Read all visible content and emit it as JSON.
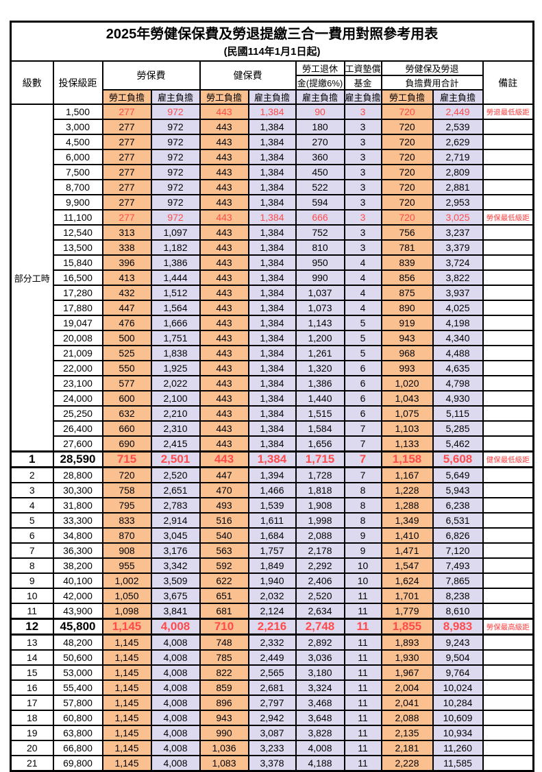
{
  "table": {
    "title": "2025年勞健保保費及勞退提繳三合一費用對照參考用表",
    "subtitle": "(民國114年1月1日起)",
    "header": {
      "level": "級數",
      "salary": "投保級距",
      "labor": "勞保費",
      "health": "健保費",
      "pension_line1": "勞工退休",
      "pension_line2": "金(提繳6%)",
      "wage_fund_line1": "工資墊償",
      "wage_fund_line2": "基金",
      "total_line1": "勞健保及勞退",
      "total_line2": "負擔費用合計",
      "remark": "備註",
      "employee": "勞工負擔",
      "employer": "雇主負擔"
    },
    "part_time_label": "部分工時",
    "part_time_rowspan": 23,
    "colors": {
      "employee_bg": "#FAC090",
      "employer_bg": "#DDDAF0",
      "highlight_text": "#FF4B4B",
      "remark_text": "#FF4040",
      "border": "#000000"
    },
    "rows": [
      {
        "level": "",
        "salary": "1,500",
        "cells": [
          "277",
          "972",
          "443",
          "1,384",
          "90",
          "3",
          "720",
          "2,449"
        ],
        "remark": "勞退最低級距",
        "highlight": true,
        "bold": false
      },
      {
        "level": "",
        "salary": "3,000",
        "cells": [
          "277",
          "972",
          "443",
          "1,384",
          "180",
          "3",
          "720",
          "2,539"
        ],
        "remark": "",
        "highlight": false,
        "bold": false
      },
      {
        "level": "",
        "salary": "4,500",
        "cells": [
          "277",
          "972",
          "443",
          "1,384",
          "270",
          "3",
          "720",
          "2,629"
        ],
        "remark": "",
        "highlight": false,
        "bold": false
      },
      {
        "level": "",
        "salary": "6,000",
        "cells": [
          "277",
          "972",
          "443",
          "1,384",
          "360",
          "3",
          "720",
          "2,719"
        ],
        "remark": "",
        "highlight": false,
        "bold": false
      },
      {
        "level": "",
        "salary": "7,500",
        "cells": [
          "277",
          "972",
          "443",
          "1,384",
          "450",
          "3",
          "720",
          "2,809"
        ],
        "remark": "",
        "highlight": false,
        "bold": false
      },
      {
        "level": "",
        "salary": "8,700",
        "cells": [
          "277",
          "972",
          "443",
          "1,384",
          "522",
          "3",
          "720",
          "2,881"
        ],
        "remark": "",
        "highlight": false,
        "bold": false
      },
      {
        "level": "",
        "salary": "9,900",
        "cells": [
          "277",
          "972",
          "443",
          "1,384",
          "594",
          "3",
          "720",
          "2,953"
        ],
        "remark": "",
        "highlight": false,
        "bold": false
      },
      {
        "level": "",
        "salary": "11,100",
        "cells": [
          "277",
          "972",
          "443",
          "1,384",
          "666",
          "3",
          "720",
          "3,025"
        ],
        "remark": "勞保最低級距",
        "highlight": true,
        "bold": false
      },
      {
        "level": "",
        "salary": "12,540",
        "cells": [
          "313",
          "1,097",
          "443",
          "1,384",
          "752",
          "3",
          "756",
          "3,237"
        ],
        "remark": "",
        "highlight": false,
        "bold": false
      },
      {
        "level": "",
        "salary": "13,500",
        "cells": [
          "338",
          "1,182",
          "443",
          "1,384",
          "810",
          "3",
          "781",
          "3,379"
        ],
        "remark": "",
        "highlight": false,
        "bold": false
      },
      {
        "level": "",
        "salary": "15,840",
        "cells": [
          "396",
          "1,386",
          "443",
          "1,384",
          "950",
          "4",
          "839",
          "3,724"
        ],
        "remark": "",
        "highlight": false,
        "bold": false
      },
      {
        "level": "",
        "salary": "16,500",
        "cells": [
          "413",
          "1,444",
          "443",
          "1,384",
          "990",
          "4",
          "856",
          "3,822"
        ],
        "remark": "",
        "highlight": false,
        "bold": false
      },
      {
        "level": "",
        "salary": "17,280",
        "cells": [
          "432",
          "1,512",
          "443",
          "1,384",
          "1,037",
          "4",
          "875",
          "3,937"
        ],
        "remark": "",
        "highlight": false,
        "bold": false
      },
      {
        "level": "",
        "salary": "17,880",
        "cells": [
          "447",
          "1,564",
          "443",
          "1,384",
          "1,073",
          "4",
          "890",
          "4,025"
        ],
        "remark": "",
        "highlight": false,
        "bold": false
      },
      {
        "level": "",
        "salary": "19,047",
        "cells": [
          "476",
          "1,666",
          "443",
          "1,384",
          "1,143",
          "5",
          "919",
          "4,198"
        ],
        "remark": "",
        "highlight": false,
        "bold": false
      },
      {
        "level": "",
        "salary": "20,008",
        "cells": [
          "500",
          "1,751",
          "443",
          "1,384",
          "1,200",
          "5",
          "943",
          "4,340"
        ],
        "remark": "",
        "highlight": false,
        "bold": false
      },
      {
        "level": "",
        "salary": "21,009",
        "cells": [
          "525",
          "1,838",
          "443",
          "1,384",
          "1,261",
          "5",
          "968",
          "4,488"
        ],
        "remark": "",
        "highlight": false,
        "bold": false
      },
      {
        "level": "",
        "salary": "22,000",
        "cells": [
          "550",
          "1,925",
          "443",
          "1,384",
          "1,320",
          "6",
          "993",
          "4,635"
        ],
        "remark": "",
        "highlight": false,
        "bold": false
      },
      {
        "level": "",
        "salary": "23,100",
        "cells": [
          "577",
          "2,022",
          "443",
          "1,384",
          "1,386",
          "6",
          "1,020",
          "4,798"
        ],
        "remark": "",
        "highlight": false,
        "bold": false
      },
      {
        "level": "",
        "salary": "24,000",
        "cells": [
          "600",
          "2,100",
          "443",
          "1,384",
          "1,440",
          "6",
          "1,043",
          "4,930"
        ],
        "remark": "",
        "highlight": false,
        "bold": false
      },
      {
        "level": "",
        "salary": "25,250",
        "cells": [
          "632",
          "2,210",
          "443",
          "1,384",
          "1,515",
          "6",
          "1,075",
          "5,115"
        ],
        "remark": "",
        "highlight": false,
        "bold": false
      },
      {
        "level": "",
        "salary": "26,400",
        "cells": [
          "660",
          "2,310",
          "443",
          "1,384",
          "1,584",
          "7",
          "1,103",
          "5,285"
        ],
        "remark": "",
        "highlight": false,
        "bold": false
      },
      {
        "level": "",
        "salary": "27,600",
        "cells": [
          "690",
          "2,415",
          "443",
          "1,384",
          "1,656",
          "7",
          "1,133",
          "5,462"
        ],
        "remark": "",
        "highlight": false,
        "bold": false
      },
      {
        "level": "1",
        "salary": "28,590",
        "cells": [
          "715",
          "2,501",
          "443",
          "1,384",
          "1,715",
          "7",
          "1,158",
          "5,608"
        ],
        "remark": "健保最低級距",
        "highlight": true,
        "bold": true
      },
      {
        "level": "2",
        "salary": "28,800",
        "cells": [
          "720",
          "2,520",
          "447",
          "1,394",
          "1,728",
          "7",
          "1,167",
          "5,649"
        ],
        "remark": "",
        "highlight": false,
        "bold": false
      },
      {
        "level": "3",
        "salary": "30,300",
        "cells": [
          "758",
          "2,651",
          "470",
          "1,466",
          "1,818",
          "8",
          "1,228",
          "5,943"
        ],
        "remark": "",
        "highlight": false,
        "bold": false
      },
      {
        "level": "4",
        "salary": "31,800",
        "cells": [
          "795",
          "2,783",
          "493",
          "1,539",
          "1,908",
          "8",
          "1,288",
          "6,238"
        ],
        "remark": "",
        "highlight": false,
        "bold": false
      },
      {
        "level": "5",
        "salary": "33,300",
        "cells": [
          "833",
          "2,914",
          "516",
          "1,611",
          "1,998",
          "8",
          "1,349",
          "6,531"
        ],
        "remark": "",
        "highlight": false,
        "bold": false
      },
      {
        "level": "6",
        "salary": "34,800",
        "cells": [
          "870",
          "3,045",
          "540",
          "1,684",
          "2,088",
          "9",
          "1,410",
          "6,826"
        ],
        "remark": "",
        "highlight": false,
        "bold": false
      },
      {
        "level": "7",
        "salary": "36,300",
        "cells": [
          "908",
          "3,176",
          "563",
          "1,757",
          "2,178",
          "9",
          "1,471",
          "7,120"
        ],
        "remark": "",
        "highlight": false,
        "bold": false
      },
      {
        "level": "8",
        "salary": "38,200",
        "cells": [
          "955",
          "3,342",
          "592",
          "1,849",
          "2,292",
          "10",
          "1,547",
          "7,493"
        ],
        "remark": "",
        "highlight": false,
        "bold": false
      },
      {
        "level": "9",
        "salary": "40,100",
        "cells": [
          "1,002",
          "3,509",
          "622",
          "1,940",
          "2,406",
          "10",
          "1,624",
          "7,865"
        ],
        "remark": "",
        "highlight": false,
        "bold": false
      },
      {
        "level": "10",
        "salary": "42,000",
        "cells": [
          "1,050",
          "3,675",
          "651",
          "2,032",
          "2,520",
          "11",
          "1,701",
          "8,238"
        ],
        "remark": "",
        "highlight": false,
        "bold": false
      },
      {
        "level": "11",
        "salary": "43,900",
        "cells": [
          "1,098",
          "3,841",
          "681",
          "2,124",
          "2,634",
          "11",
          "1,779",
          "8,610"
        ],
        "remark": "",
        "highlight": false,
        "bold": false
      },
      {
        "level": "12",
        "salary": "45,800",
        "cells": [
          "1,145",
          "4,008",
          "710",
          "2,216",
          "2,748",
          "11",
          "1,855",
          "8,983"
        ],
        "remark": "勞保最高級距",
        "highlight": true,
        "bold": true
      },
      {
        "level": "13",
        "salary": "48,200",
        "cells": [
          "1,145",
          "4,008",
          "748",
          "2,332",
          "2,892",
          "11",
          "1,893",
          "9,243"
        ],
        "remark": "",
        "highlight": false,
        "bold": false
      },
      {
        "level": "14",
        "salary": "50,600",
        "cells": [
          "1,145",
          "4,008",
          "785",
          "2,449",
          "3,036",
          "11",
          "1,930",
          "9,504"
        ],
        "remark": "",
        "highlight": false,
        "bold": false
      },
      {
        "level": "15",
        "salary": "53,000",
        "cells": [
          "1,145",
          "4,008",
          "822",
          "2,565",
          "3,180",
          "11",
          "1,967",
          "9,764"
        ],
        "remark": "",
        "highlight": false,
        "bold": false
      },
      {
        "level": "16",
        "salary": "55,400",
        "cells": [
          "1,145",
          "4,008",
          "859",
          "2,681",
          "3,324",
          "11",
          "2,004",
          "10,024"
        ],
        "remark": "",
        "highlight": false,
        "bold": false
      },
      {
        "level": "17",
        "salary": "57,800",
        "cells": [
          "1,145",
          "4,008",
          "896",
          "2,797",
          "3,468",
          "11",
          "2,041",
          "10,284"
        ],
        "remark": "",
        "highlight": false,
        "bold": false
      },
      {
        "level": "18",
        "salary": "60,800",
        "cells": [
          "1,145",
          "4,008",
          "943",
          "2,942",
          "3,648",
          "11",
          "2,088",
          "10,609"
        ],
        "remark": "",
        "highlight": false,
        "bold": false
      },
      {
        "level": "19",
        "salary": "63,800",
        "cells": [
          "1,145",
          "4,008",
          "990",
          "3,087",
          "3,828",
          "11",
          "2,135",
          "10,934"
        ],
        "remark": "",
        "highlight": false,
        "bold": false
      },
      {
        "level": "20",
        "salary": "66,800",
        "cells": [
          "1,145",
          "4,008",
          "1,036",
          "3,233",
          "4,008",
          "11",
          "2,181",
          "11,260"
        ],
        "remark": "",
        "highlight": false,
        "bold": false
      },
      {
        "level": "21",
        "salary": "69,800",
        "cells": [
          "1,145",
          "4,008",
          "1,083",
          "3,378",
          "4,188",
          "11",
          "2,228",
          "11,585"
        ],
        "remark": "",
        "highlight": false,
        "bold": false
      }
    ]
  }
}
